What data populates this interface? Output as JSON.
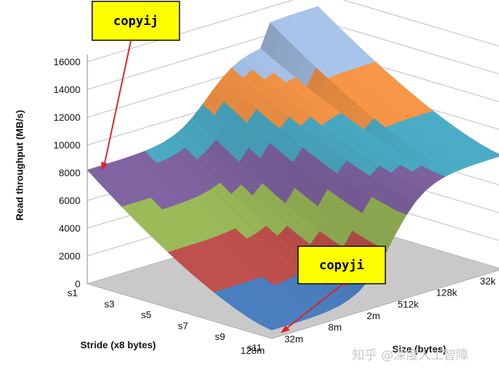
{
  "chart_data": {
    "type": "surface3d",
    "ylabel": "Read throughput (MB/s)",
    "zlim": [
      0,
      16000
    ],
    "z_ticks": [
      0,
      2000,
      4000,
      6000,
      8000,
      10000,
      12000,
      14000,
      16000
    ],
    "stride_label": "Stride (x8 bytes)",
    "stride_ticks": [
      "s1",
      "s3",
      "s5",
      "s7",
      "s9",
      "s11"
    ],
    "size_label": "Size (bytes)",
    "size_ticks": [
      "32k",
      "128k",
      "512k",
      "2m",
      "8m",
      "32m",
      "128m"
    ],
    "band_colors": [
      "#4a7fbf",
      "#c0504d",
      "#9bbb59",
      "#8064a2",
      "#4bacc6",
      "#f79646",
      "#a9c4eb"
    ],
    "annotations": [
      "copyij",
      "copyji"
    ],
    "grid": true
  },
  "watermark": "知乎 @深度人工智障"
}
